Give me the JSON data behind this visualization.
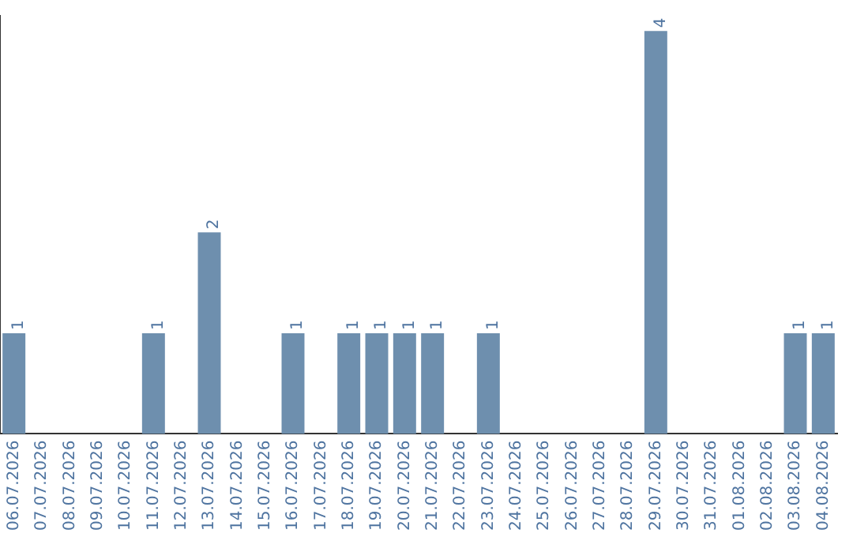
{
  "chart_data": {
    "type": "bar",
    "categories": [
      "06.07.2026",
      "07.07.2026",
      "08.07.2026",
      "09.07.2026",
      "10.07.2026",
      "11.07.2026",
      "12.07.2026",
      "13.07.2026",
      "14.07.2026",
      "15.07.2026",
      "16.07.2026",
      "17.07.2026",
      "18.07.2026",
      "19.07.2026",
      "20.07.2026",
      "21.07.2026",
      "22.07.2026",
      "23.07.2026",
      "24.07.2026",
      "25.07.2026",
      "26.07.2026",
      "27.07.2026",
      "28.07.2026",
      "29.07.2026",
      "30.07.2026",
      "31.07.2026",
      "01.08.2026",
      "02.08.2026",
      "03.08.2026",
      "04.08.2026"
    ],
    "values": [
      1,
      0,
      0,
      0,
      0,
      1,
      0,
      2,
      0,
      0,
      1,
      0,
      1,
      1,
      1,
      1,
      0,
      1,
      0,
      0,
      0,
      0,
      0,
      4,
      0,
      0,
      0,
      0,
      1,
      1
    ],
    "value_labels": [
      "1",
      null,
      null,
      null,
      null,
      "1",
      null,
      "2",
      null,
      null,
      "1",
      null,
      "1",
      "1",
      "1",
      "1",
      null,
      "1",
      null,
      null,
      null,
      null,
      null,
      "4",
      null,
      null,
      null,
      null,
      "1",
      "1"
    ],
    "color": "#6e8fae",
    "ylim": [
      0,
      4.15
    ],
    "tick_labels": "x",
    "grid": false,
    "legend": false
  }
}
